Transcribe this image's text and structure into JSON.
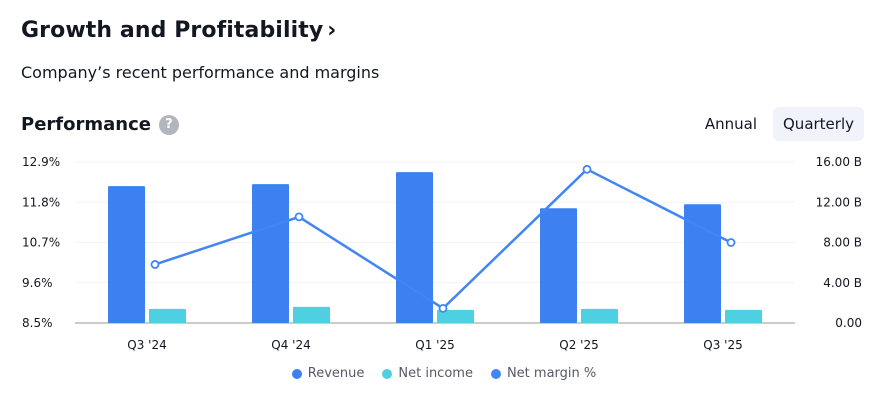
{
  "header": {
    "title": "Growth and Profitability",
    "title_chevron": "›",
    "subtitle": "Company’s recent performance and margins",
    "section": "Performance",
    "help": "?"
  },
  "toggle": {
    "annual": "Annual",
    "quarterly": "Quarterly",
    "selected": "Quarterly"
  },
  "colors": {
    "revenue": "#3d80f0",
    "net_income": "#4dd0e1",
    "net_margin": "#4285f4"
  },
  "chart_data": {
    "type": "bar",
    "categories": [
      "Q3 '24",
      "Q4 '24",
      "Q1 '25",
      "Q2 '25",
      "Q3 '25"
    ],
    "series": [
      {
        "name": "Revenue",
        "axis": "right",
        "type": "bar",
        "values": [
          13.6,
          13.8,
          15.0,
          11.4,
          11.8
        ]
      },
      {
        "name": "Net income",
        "axis": "right",
        "type": "bar",
        "values": [
          1.4,
          1.6,
          1.3,
          1.4,
          1.3
        ]
      },
      {
        "name": "Net margin %",
        "axis": "left",
        "type": "line",
        "values": [
          10.1,
          11.4,
          8.9,
          12.7,
          10.7
        ]
      }
    ],
    "left_axis": {
      "ticks": [
        "12.9%",
        "11.8%",
        "10.7%",
        "9.6%",
        "8.5%"
      ],
      "min": 8.5,
      "max": 12.9
    },
    "right_axis": {
      "ticks": [
        "16.00 B",
        "12.00 B",
        "8.00 B",
        "4.00 B",
        "0.00"
      ],
      "min": 0,
      "max": 16
    },
    "legend": [
      "Revenue",
      "Net income",
      "Net margin %"
    ]
  }
}
